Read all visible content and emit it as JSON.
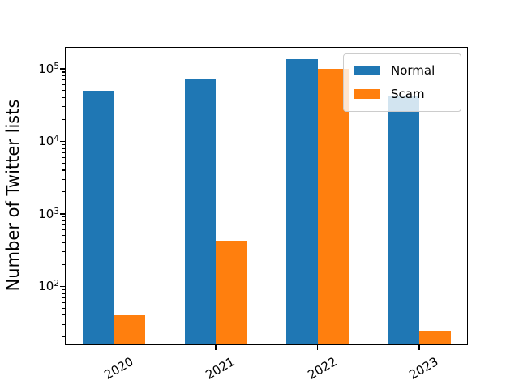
{
  "chart_data": {
    "type": "bar",
    "title": "",
    "ylabel": "Number of Twitter lists",
    "xlabel": "",
    "yscale": "log",
    "grid": false,
    "categories": [
      "2020",
      "2021",
      "2022",
      "2023"
    ],
    "series": [
      {
        "name": "Normal",
        "color": "#1f77b4",
        "values": [
          47000,
          68000,
          130000,
          40000
        ]
      },
      {
        "name": "Scam",
        "color": "#ff7f0e",
        "values": [
          38,
          400,
          95000,
          23
        ]
      }
    ],
    "ylim": [
      15,
      195000
    ],
    "y_major_tick_exponents": [
      2,
      3,
      4,
      5
    ],
    "x_tick_rotation_deg": 30,
    "legend": {
      "position": "upper right",
      "entries": [
        "Normal",
        "Scam"
      ]
    }
  },
  "colors": {
    "background": "#ffffff",
    "spine": "#000000",
    "legend_border": "#cccccc",
    "normal_bar": "#1f77b4",
    "scam_bar": "#ff7f0e"
  }
}
